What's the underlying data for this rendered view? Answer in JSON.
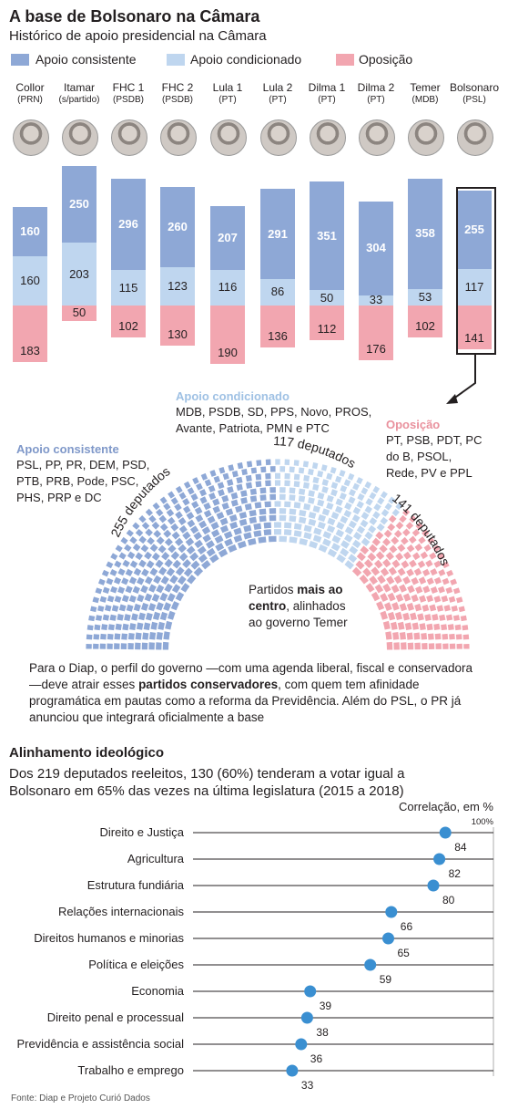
{
  "header": {
    "title": "A base de Bolsonaro na Câmara",
    "subtitle": "Histórico de apoio presidencial na Câmara"
  },
  "legend": [
    {
      "label": "Apoio consistente",
      "color": "#8ea8d6"
    },
    {
      "label": "Apoio condicionado",
      "color": "#bfd6ef"
    },
    {
      "label": "Oposição",
      "color": "#f2a6b0"
    }
  ],
  "chart_data": [
    {
      "type": "bar",
      "stacked": true,
      "title": "Histórico de apoio presidencial na Câmara",
      "categories": [
        "Collor",
        "Itamar",
        "FHC 1",
        "FHC 2",
        "Lula 1",
        "Lula 2",
        "Dilma 1",
        "Dilma 2",
        "Temer",
        "Bolsonaro"
      ],
      "parties": [
        "(PRN)",
        "(s/partido)",
        "(PSDB)",
        "(PSDB)",
        "(PT)",
        "(PT)",
        "(PT)",
        "(PT)",
        "(MDB)",
        "(PSL)"
      ],
      "series": [
        {
          "name": "Apoio consistente",
          "color": "#8ea8d6",
          "values": [
            160,
            250,
            296,
            260,
            207,
            291,
            351,
            304,
            358,
            255
          ]
        },
        {
          "name": "Apoio condicionado",
          "color": "#bfd6ef",
          "values": [
            160,
            203,
            115,
            123,
            116,
            86,
            50,
            33,
            53,
            117
          ]
        },
        {
          "name": "Oposição",
          "color": "#f2a6b0",
          "values": [
            183,
            50,
            102,
            130,
            190,
            136,
            112,
            176,
            102,
            141
          ]
        }
      ],
      "highlight": "Bolsonaro"
    },
    {
      "type": "scatter",
      "title": "Alinhamento ideológico",
      "xlabel": "Correlação, em %",
      "xlim": [
        0,
        100
      ],
      "xtick_label": "100%",
      "categories": [
        "Direito e Justiça",
        "Agricultura",
        "Estrutura fundiária",
        "Relações internacionais",
        "Direitos humanos e minorias",
        "Política e eleições",
        "Economia",
        "Direito penal e processual",
        "Previdência e assistência social",
        "Trabalho e emprego"
      ],
      "values": [
        84,
        82,
        80,
        66,
        65,
        59,
        39,
        38,
        36,
        33
      ],
      "point_color": "#3a8fd1"
    }
  ],
  "hemicycle": {
    "consistente_label": "255 deputados",
    "condicionado_label": "117 deputados",
    "oposicao_label": "141 deputados",
    "consistente_count": 255,
    "condicionado_count": 117,
    "oposicao_count": 141,
    "center_note_1": "Partidos ",
    "center_note_bold": "mais ao",
    "center_note_2": "centro",
    "center_note_3": ", alinhados",
    "center_note_4": "ao governo Temer"
  },
  "groups": {
    "condicionado": {
      "title": "Apoio condicionado",
      "lines": [
        "MDB, PSDB, SD, PPS, Novo, PROS,",
        "Avante, Patriota, PMN e PTC"
      ]
    },
    "consistente": {
      "title": "Apoio consistente",
      "lines": [
        "PSL, PP, PR, DEM, PSD,",
        "PTB, PRB, Pode, PSC,",
        "PHS, PRP e DC"
      ]
    },
    "oposicao": {
      "title": "Oposição",
      "lines": [
        "PT, PSB, PDT, PC",
        "do B, PSOL,",
        "Rede, PV e PPL"
      ]
    }
  },
  "paragraph": {
    "l1": "Para o Diap, o perfil do governo —com uma agenda liberal, fiscal e conservadora",
    "l2a": "—deve atrair esses ",
    "l2b": "partidos conservadores",
    "l2c": ", com quem tem afinidade",
    "l3": "programática em pautas como a reforma da Previdência. Além do PSL, o PR já",
    "l4": "anunciou que integrará oficialmente a base"
  },
  "section2": {
    "title": "Alinhamento ideológico",
    "desc1": "Dos 219 deputados reeleitos, 130 (60%) tenderam a votar igual a",
    "desc2": "Bolsonaro em 65% das vezes na última legislatura (2015 a 2018)"
  },
  "source": "Fonte: Diap e Projeto Curió Dados"
}
